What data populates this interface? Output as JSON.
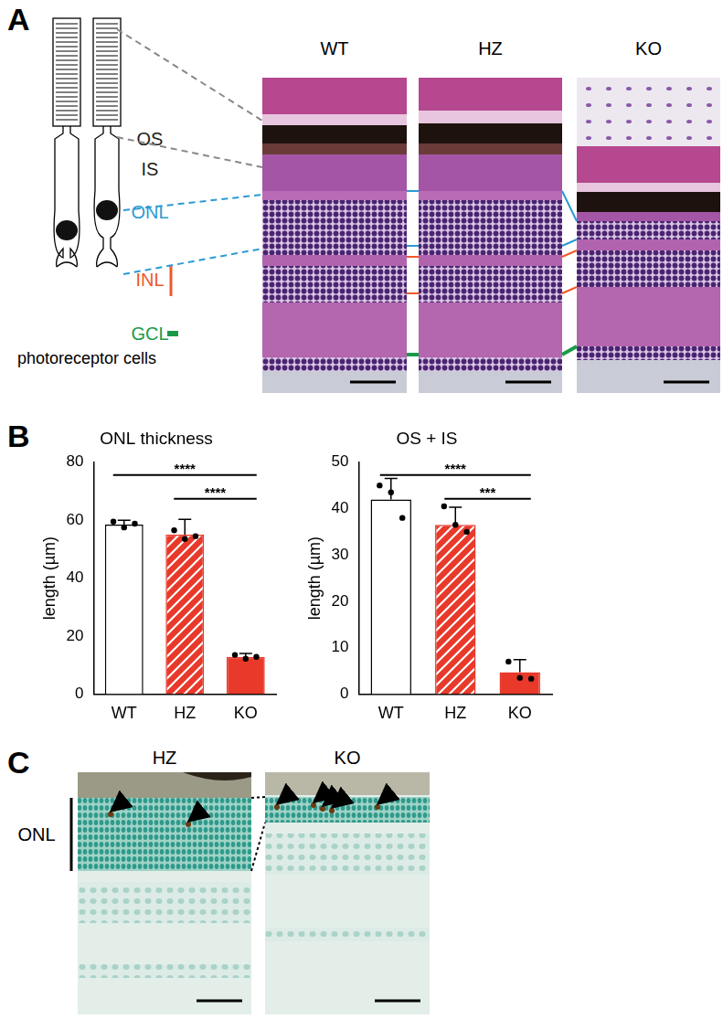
{
  "panel_labels": [
    "A",
    "B",
    "C"
  ],
  "panel_A": {
    "schematic_caption": "photoreceptor cells",
    "layers": [
      {
        "label": "OS",
        "color": "#231f20"
      },
      {
        "label": "IS",
        "color": "#231f20"
      },
      {
        "label": "ONL",
        "color": "#2b9ad4"
      },
      {
        "label": "INL",
        "color": "#f0582a"
      },
      {
        "label": "GCL",
        "color": "#1a9a4a"
      }
    ],
    "columns": [
      "WT",
      "HZ",
      "KO"
    ]
  },
  "chart_data": [
    {
      "type": "bar",
      "title": "ONL thickness",
      "y_label": "length (µm)",
      "categories": [
        "WT",
        "HZ",
        "KO"
      ],
      "values": [
        58.5,
        55,
        12.8
      ],
      "errors": [
        1.5,
        5.3,
        1.2
      ],
      "points": [
        [
          59.5,
          57.5,
          58.8
        ],
        [
          56.5,
          53.5,
          54.5
        ],
        [
          13.5,
          12.2,
          12.8
        ]
      ],
      "colors": [
        "#ffffff",
        "#e8392a",
        "#e8392a"
      ],
      "ylim": [
        0,
        80
      ],
      "yticks": [
        0,
        20,
        40,
        60,
        80
      ],
      "grid": false,
      "annotations": [
        {
          "from": "WT",
          "to": "KO",
          "label": "****"
        },
        {
          "from": "HZ",
          "to": "KO",
          "label": "****"
        }
      ]
    },
    {
      "type": "bar",
      "title": "OS + IS",
      "y_label": "length (µm)",
      "categories": [
        "WT",
        "HZ",
        "KO"
      ],
      "values": [
        42,
        36.5,
        4.7
      ],
      "errors": [
        4.5,
        3.8,
        2.7
      ],
      "points": [
        [
          45,
          43.5,
          38
        ],
        [
          40.5,
          36.5,
          35
        ],
        [
          7,
          3.5,
          3.3
        ]
      ],
      "colors": [
        "#ffffff",
        "#e8392a",
        "#e8392a"
      ],
      "ylim": [
        0,
        50
      ],
      "yticks": [
        0,
        10,
        20,
        30,
        40,
        50
      ],
      "grid": false,
      "annotations": [
        {
          "from": "WT",
          "to": "KO",
          "label": "****"
        },
        {
          "from": "HZ",
          "to": "KO",
          "label": "***"
        }
      ]
    }
  ],
  "panel_C": {
    "row_label": "ONL",
    "columns": [
      "HZ",
      "KO"
    ]
  }
}
